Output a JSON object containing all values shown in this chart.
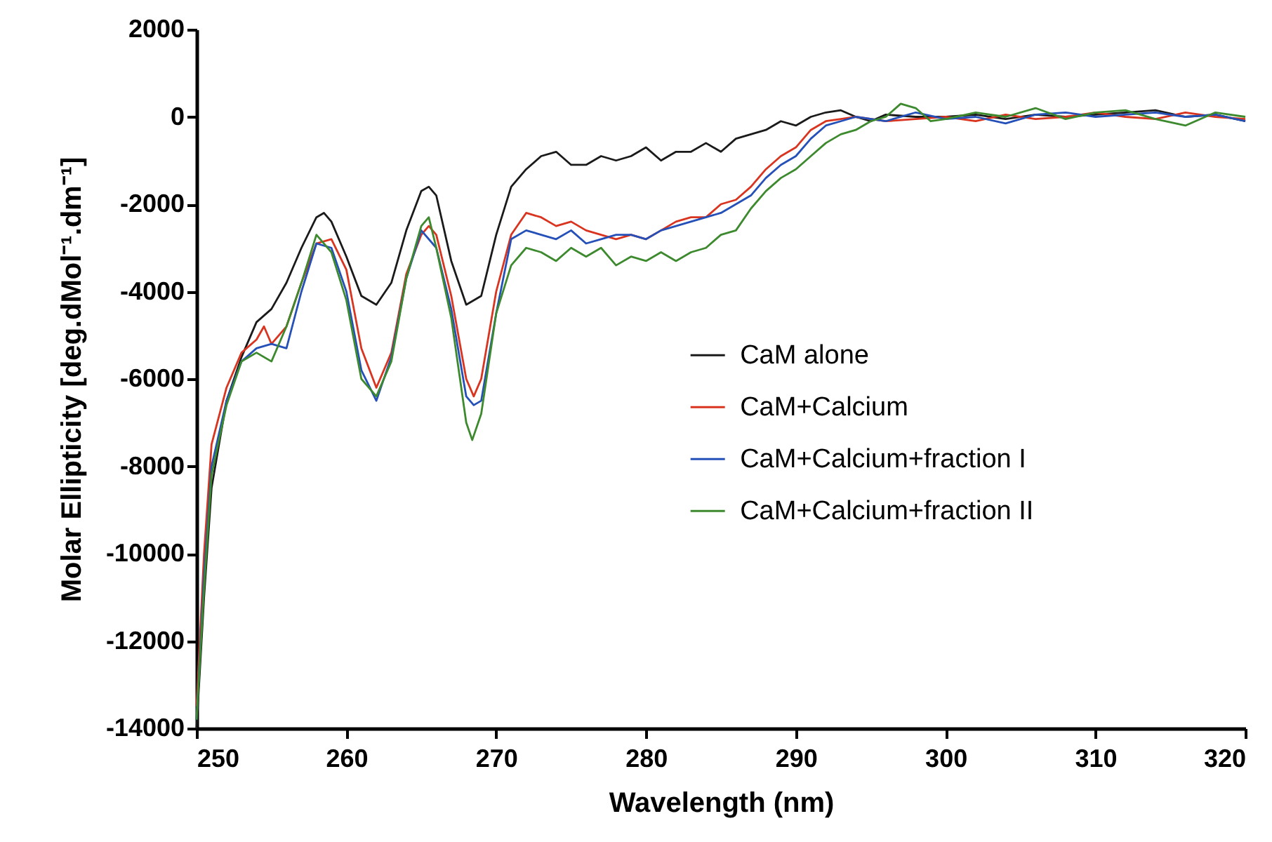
{
  "chart_data": {
    "type": "line",
    "xlabel": "Wavelength (nm)",
    "ylabel": "Molar Ellipticity  [deg.dMol⁻¹.dm⁻¹]",
    "xlim": [
      250,
      320
    ],
    "xticks": [
      250,
      260,
      270,
      280,
      290,
      300,
      310,
      320
    ],
    "ylim": [
      -14000,
      2000
    ],
    "yticks": [
      -14000,
      -12000,
      -10000,
      -8000,
      -6000,
      -4000,
      -2000,
      0,
      2000
    ],
    "grid": false,
    "legend": "right",
    "marker": "none",
    "line_style": "solid",
    "series": [
      {
        "name": "CaM alone",
        "color": "#1a1a1a",
        "x": [
          250,
          250.5,
          251,
          252,
          253,
          254,
          255,
          256,
          257,
          258,
          258.5,
          259,
          260,
          261,
          262,
          263,
          264,
          265,
          265.5,
          266,
          267,
          268,
          269,
          270,
          271,
          272,
          273,
          274,
          275,
          276,
          277,
          278,
          279,
          280,
          281,
          282,
          283,
          284,
          285,
          286,
          287,
          288,
          289,
          290,
          291,
          292,
          293,
          294,
          295,
          296,
          298,
          300,
          302,
          304,
          306,
          308,
          310,
          312,
          314,
          316,
          318,
          320
        ],
        "values": [
          -14000,
          -11000,
          -8500,
          -6500,
          -5500,
          -4700,
          -4400,
          -3800,
          -3000,
          -2300,
          -2200,
          -2400,
          -3200,
          -4100,
          -4300,
          -3800,
          -2600,
          -1700,
          -1600,
          -1800,
          -3300,
          -4300,
          -4100,
          -2700,
          -1600,
          -1200,
          -900,
          -800,
          -1100,
          -1100,
          -900,
          -1000,
          -900,
          -700,
          -1000,
          -800,
          -800,
          -600,
          -800,
          -500,
          -400,
          -300,
          -100,
          -200,
          0,
          100,
          150,
          0,
          -100,
          50,
          0,
          0,
          50,
          -50,
          50,
          0,
          50,
          100,
          150,
          0,
          50,
          -100
        ]
      },
      {
        "name": "CaM+Calcium",
        "color": "#d9341f",
        "x": [
          250,
          250.5,
          251,
          252,
          253,
          254,
          254.5,
          255,
          256,
          257,
          258,
          259,
          260,
          261,
          262,
          263,
          264,
          265,
          265.5,
          266,
          267,
          268,
          268.5,
          269,
          270,
          271,
          272,
          273,
          274,
          275,
          276,
          277,
          278,
          279,
          280,
          281,
          282,
          283,
          284,
          285,
          286,
          287,
          288,
          289,
          290,
          291,
          292,
          293,
          294,
          296,
          298,
          300,
          302,
          304,
          306,
          308,
          310,
          312,
          314,
          316,
          318,
          320
        ],
        "values": [
          -13500,
          -10000,
          -7500,
          -6200,
          -5400,
          -5100,
          -4800,
          -5200,
          -4800,
          -3800,
          -2900,
          -2800,
          -3500,
          -5300,
          -6200,
          -5400,
          -3600,
          -2700,
          -2500,
          -2700,
          -4100,
          -6000,
          -6400,
          -6000,
          -4000,
          -2700,
          -2200,
          -2300,
          -2500,
          -2400,
          -2600,
          -2700,
          -2800,
          -2700,
          -2800,
          -2600,
          -2400,
          -2300,
          -2300,
          -2000,
          -1900,
          -1600,
          -1200,
          -900,
          -700,
          -300,
          -100,
          -50,
          0,
          -100,
          -50,
          0,
          -100,
          50,
          -50,
          0,
          100,
          0,
          -50,
          100,
          0,
          -50
        ]
      },
      {
        "name": "CaM+Calcium+fraction I",
        "color": "#2450b8",
        "x": [
          250,
          250.5,
          251,
          252,
          253,
          254,
          255,
          256,
          257,
          258,
          259,
          260,
          261,
          262,
          263,
          264,
          265,
          266,
          267,
          268,
          268.5,
          269,
          270,
          271,
          272,
          273,
          274,
          275,
          276,
          277,
          278,
          279,
          280,
          281,
          282,
          283,
          284,
          285,
          286,
          287,
          288,
          289,
          290,
          291,
          292,
          293,
          294,
          296,
          298,
          300,
          302,
          304,
          306,
          308,
          310,
          312,
          314,
          316,
          318,
          320
        ],
        "values": [
          -13800,
          -10500,
          -8000,
          -6500,
          -5600,
          -5300,
          -5200,
          -5300,
          -4000,
          -2900,
          -3000,
          -4000,
          -5800,
          -6500,
          -5500,
          -3700,
          -2600,
          -3000,
          -4400,
          -6400,
          -6600,
          -6500,
          -4500,
          -2800,
          -2600,
          -2700,
          -2800,
          -2600,
          -2900,
          -2800,
          -2700,
          -2700,
          -2800,
          -2600,
          -2500,
          -2400,
          -2300,
          -2200,
          -2000,
          -1800,
          -1400,
          -1100,
          -900,
          -500,
          -200,
          -100,
          0,
          -100,
          100,
          -50,
          0,
          -150,
          50,
          100,
          0,
          50,
          100,
          0,
          50,
          -100
        ]
      },
      {
        "name": "CaM+Calcium+fraction II",
        "color": "#3d8a2e",
        "x": [
          250,
          250.5,
          251,
          252,
          253,
          254,
          255,
          256,
          257,
          258,
          259,
          260,
          261,
          262,
          263,
          264,
          265,
          265.5,
          266,
          267,
          268,
          268.4,
          269,
          270,
          271,
          272,
          273,
          274,
          275,
          276,
          277,
          278,
          279,
          280,
          281,
          282,
          283,
          284,
          285,
          286,
          287,
          288,
          289,
          290,
          291,
          292,
          293,
          294,
          295,
          296,
          297,
          298,
          299,
          300,
          302,
          304,
          306,
          308,
          310,
          312,
          314,
          316,
          318,
          320
        ],
        "values": [
          -13800,
          -10800,
          -8200,
          -6600,
          -5600,
          -5400,
          -5600,
          -4800,
          -3800,
          -2700,
          -3100,
          -4200,
          -6000,
          -6400,
          -5600,
          -3700,
          -2500,
          -2300,
          -3000,
          -4600,
          -7000,
          -7400,
          -6800,
          -4500,
          -3400,
          -3000,
          -3100,
          -3300,
          -3000,
          -3200,
          -3000,
          -3400,
          -3200,
          -3300,
          -3100,
          -3300,
          -3100,
          -3000,
          -2700,
          -2600,
          -2100,
          -1700,
          -1400,
          -1200,
          -900,
          -600,
          -400,
          -300,
          -100,
          0,
          300,
          200,
          -100,
          -50,
          100,
          0,
          200,
          -50,
          100,
          150,
          -50,
          -200,
          100,
          0
        ]
      }
    ]
  }
}
